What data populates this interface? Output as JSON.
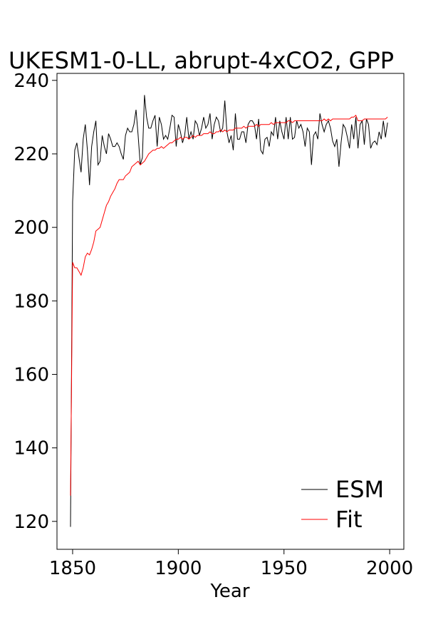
{
  "chart_data": {
    "type": "line",
    "title": "UKESM1-0-LL, abrupt-4xCO2, GPP",
    "x_label": "Year",
    "x": [
      1849,
      1850,
      1851,
      1852,
      1853,
      1854,
      1855,
      1856,
      1857,
      1858,
      1859,
      1860,
      1861,
      1862,
      1863,
      1864,
      1865,
      1866,
      1867,
      1868,
      1869,
      1870,
      1871,
      1872,
      1873,
      1874,
      1875,
      1876,
      1877,
      1878,
      1879,
      1880,
      1881,
      1882,
      1883,
      1884,
      1885,
      1886,
      1887,
      1888,
      1889,
      1890,
      1891,
      1892,
      1893,
      1894,
      1895,
      1896,
      1897,
      1898,
      1899,
      1900,
      1901,
      1902,
      1903,
      1904,
      1905,
      1906,
      1907,
      1908,
      1909,
      1910,
      1911,
      1912,
      1913,
      1914,
      1915,
      1916,
      1917,
      1918,
      1919,
      1920,
      1921,
      1922,
      1923,
      1924,
      1925,
      1926,
      1927,
      1928,
      1929,
      1930,
      1931,
      1932,
      1933,
      1934,
      1935,
      1936,
      1937,
      1938,
      1939,
      1940,
      1941,
      1942,
      1943,
      1944,
      1945,
      1946,
      1947,
      1948,
      1949,
      1950,
      1951,
      1952,
      1953,
      1954,
      1955,
      1956,
      1957,
      1958,
      1959,
      1960,
      1961,
      1962,
      1963,
      1964,
      1965,
      1966,
      1967,
      1968,
      1969,
      1970,
      1971,
      1972,
      1973,
      1974,
      1975,
      1976,
      1977,
      1978,
      1979,
      1980,
      1981,
      1982,
      1983,
      1984,
      1985,
      1986,
      1987,
      1988,
      1989,
      1990,
      1991,
      1992,
      1993,
      1994,
      1995,
      1996,
      1997,
      1998,
      1999
    ],
    "series": [
      {
        "name": "ESM",
        "color": "#000000",
        "values": [
          118.5,
          207,
          221,
          223,
          219,
          215,
          224,
          228,
          221,
          211.5,
          222,
          226,
          229,
          217,
          218,
          225,
          222,
          220,
          225.5,
          224,
          222,
          222,
          223,
          222,
          220,
          218.5,
          225,
          227,
          226,
          226,
          228,
          232,
          225,
          217,
          219,
          236,
          230,
          227,
          227,
          229,
          230.5,
          222,
          230,
          228,
          224,
          225,
          224,
          227,
          230.5,
          230,
          222,
          228,
          226,
          223,
          225,
          230,
          224,
          226,
          224,
          229,
          228,
          225,
          227,
          230,
          227,
          228,
          231,
          224,
          228,
          230,
          229,
          226,
          227,
          234.5,
          226,
          223,
          225,
          221,
          231,
          224,
          224,
          226,
          226,
          223,
          228,
          229,
          229,
          228,
          224,
          229.5,
          221,
          220,
          224,
          224.5,
          222,
          226,
          225,
          230,
          224,
          229,
          226,
          224,
          230,
          224,
          230,
          224,
          224.5,
          229,
          227,
          228,
          226,
          222,
          227,
          226,
          217,
          225,
          226,
          224,
          231,
          228,
          226,
          228,
          229,
          227,
          223.5,
          222,
          224,
          216.5,
          223,
          228,
          227,
          224.5,
          221.5,
          228,
          224,
          230,
          221.5,
          228,
          229,
          222.5,
          229.5,
          228,
          221.5,
          223,
          223.5,
          222.5,
          226,
          224,
          229,
          224.5,
          228.5
        ]
      },
      {
        "name": "Fit",
        "color": "#ff0000",
        "values": [
          127,
          190.5,
          189,
          189,
          188,
          187,
          189,
          192,
          193,
          192.5,
          194,
          196,
          199,
          199.5,
          200,
          202,
          204,
          206,
          207,
          208.5,
          209.5,
          210.5,
          212,
          213,
          213,
          213,
          214,
          214.5,
          215,
          216.5,
          217,
          217.5,
          218,
          217,
          217.5,
          218,
          219,
          220,
          220.5,
          221,
          221,
          221.5,
          221.5,
          222,
          221.5,
          222,
          222.5,
          223,
          223,
          223.5,
          224,
          224,
          224.5,
          224,
          224.5,
          224.5,
          224,
          224.5,
          225,
          224.5,
          225,
          225,
          225,
          225.5,
          225.5,
          225.5,
          226,
          225.5,
          225.5,
          226,
          226,
          226.5,
          226,
          226.5,
          226,
          226.5,
          226.5,
          226.5,
          227,
          227,
          227,
          227,
          227.5,
          227,
          227.5,
          227.5,
          227.5,
          227.5,
          228,
          227.5,
          228,
          228,
          228,
          228,
          228,
          228.5,
          228,
          228.5,
          228.5,
          228.5,
          228.5,
          228.5,
          228.5,
          229,
          229,
          228.5,
          229,
          229,
          229,
          229,
          229,
          229,
          229,
          229,
          229,
          229,
          229,
          229,
          229,
          229,
          229.5,
          229,
          229.5,
          229,
          229.5,
          229.5,
          229.5,
          229.5,
          229.5,
          229.5,
          229.5,
          229.5,
          229.5,
          230,
          230,
          230.5,
          229,
          229,
          229,
          229.5,
          229.5,
          229.5,
          229.5,
          229.5,
          229.5,
          229.5,
          229.5,
          229.5,
          229.5,
          229.5,
          230
        ]
      }
    ],
    "xlim": [
      1842.6,
      2006.7
    ],
    "ylim": [
      112.4,
      241.9
    ],
    "xticks": [
      1850,
      1900,
      1950,
      2000
    ],
    "yticks": [
      120,
      140,
      160,
      180,
      200,
      220,
      240
    ],
    "legend": "lower right"
  }
}
